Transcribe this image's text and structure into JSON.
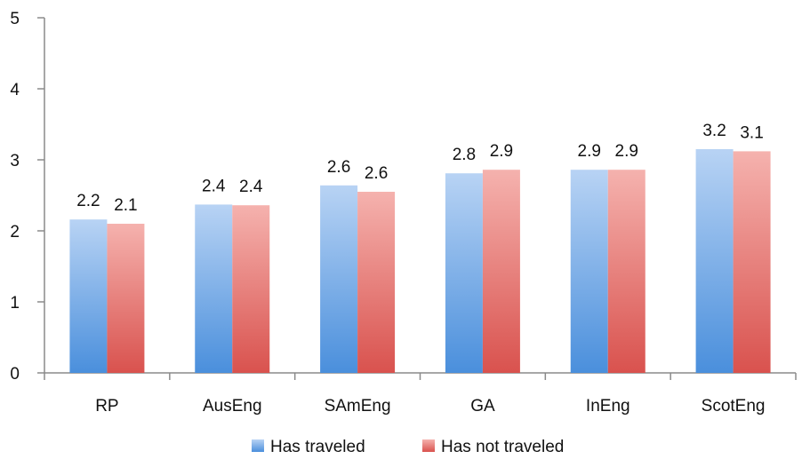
{
  "chart_data": {
    "type": "bar",
    "categories": [
      "RP",
      "AusEng",
      "SAmEng",
      "GA",
      "InEng",
      "ScotEng"
    ],
    "series": [
      {
        "name": "Has traveled",
        "values": [
          2.16,
          2.37,
          2.64,
          2.81,
          2.86,
          3.15
        ],
        "labels": [
          "2.2",
          "2.4",
          "2.6",
          "2.8",
          "2.9",
          "3.2"
        ],
        "color": "#6fa8e8"
      },
      {
        "name": "Has not traveled",
        "values": [
          2.1,
          2.36,
          2.55,
          2.86,
          2.86,
          3.12
        ],
        "labels": [
          "2.1",
          "2.4",
          "2.6",
          "2.9",
          "2.9",
          "3.1"
        ],
        "color": "#e8706d"
      }
    ],
    "y_ticks": [
      "0",
      "1",
      "2",
      "3",
      "4",
      "5"
    ],
    "ylim": [
      0,
      5
    ],
    "grid": false,
    "legend": "bottom"
  }
}
